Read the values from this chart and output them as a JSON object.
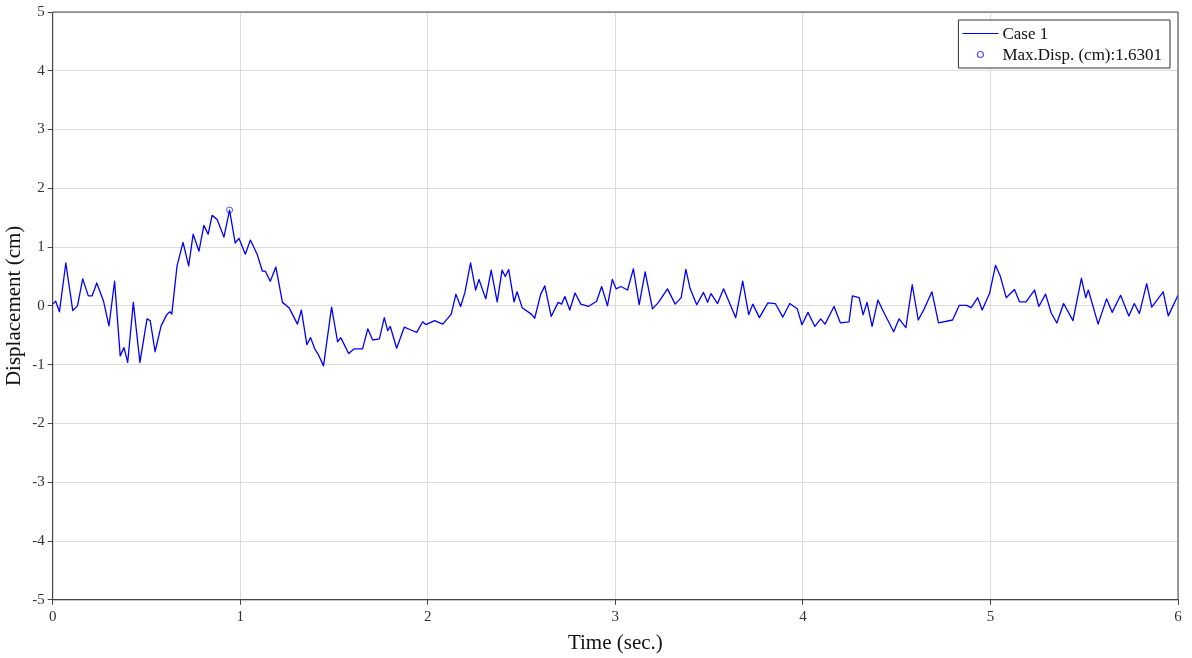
{
  "chart_data": {
    "type": "line",
    "xlabel": "Time (sec.)",
    "ylabel": "Displacement (cm)",
    "xlim": [
      0,
      6
    ],
    "ylim": [
      -5,
      5
    ],
    "xticks": [
      0,
      1,
      2,
      3,
      4,
      5,
      6
    ],
    "yticks": [
      -5,
      -4,
      -3,
      -2,
      -1,
      0,
      1,
      2,
      3,
      4,
      5
    ],
    "grid": true,
    "legend": "top right",
    "series": [
      {
        "name": "Case 1",
        "color": "#0000ff",
        "marker": "none",
        "line_style": "solid",
        "x": [
          0,
          0.016,
          0.036,
          0.07,
          0.107,
          0.132,
          0.16,
          0.19,
          0.21,
          0.235,
          0.271,
          0.3,
          0.33,
          0.36,
          0.38,
          0.4,
          0.43,
          0.465,
          0.503,
          0.52,
          0.546,
          0.578,
          0.61,
          0.625,
          0.635,
          0.663,
          0.695,
          0.725,
          0.749,
          0.78,
          0.806,
          0.829,
          0.85,
          0.877,
          0.913,
          0.943,
          0.973,
          0.993,
          1.027,
          1.054,
          1.09,
          1.118,
          1.134,
          1.16,
          1.19,
          1.225,
          1.26,
          1.305,
          1.326,
          1.355,
          1.375,
          1.397,
          1.415,
          1.444,
          1.487,
          1.519,
          1.536,
          1.578,
          1.608,
          1.652,
          1.68,
          1.706,
          1.742,
          1.768,
          1.786,
          1.8,
          1.834,
          1.875,
          1.91,
          1.941,
          1.973,
          1.99,
          2.036,
          2.08,
          2.125,
          2.15,
          2.175,
          2.198,
          2.228,
          2.255,
          2.273,
          2.309,
          2.338,
          2.37,
          2.396,
          2.413,
          2.431,
          2.46,
          2.476,
          2.503,
          2.552,
          2.57,
          2.602,
          2.624,
          2.658,
          2.695,
          2.713,
          2.731,
          2.757,
          2.785,
          2.816,
          2.856,
          2.9,
          2.927,
          2.958,
          2.984,
          3.004,
          3.03,
          3.065,
          3.096,
          3.127,
          3.159,
          3.198,
          3.23,
          3.278,
          3.319,
          3.351,
          3.376,
          3.399,
          3.434,
          3.47,
          3.492,
          3.51,
          3.545,
          3.577,
          3.642,
          3.679,
          3.711,
          3.733,
          3.768,
          3.813,
          3.853,
          3.893,
          3.93,
          3.97,
          3.995,
          4.027,
          4.064,
          4.095,
          4.118,
          4.166,
          4.2,
          4.246,
          4.264,
          4.3,
          4.321,
          4.342,
          4.369,
          4.4,
          4.425,
          4.484,
          4.513,
          4.549,
          4.583,
          4.615,
          4.647,
          4.688,
          4.723,
          4.798,
          4.834,
          4.873,
          4.897,
          4.932,
          4.956,
          4.995,
          5.027,
          5.052,
          5.084,
          5.128,
          5.155,
          5.19,
          5.235,
          5.258,
          5.294,
          5.324,
          5.354,
          5.39,
          5.44,
          5.485,
          5.508,
          5.522,
          5.574,
          5.619,
          5.649,
          5.694,
          5.738,
          5.767,
          5.794,
          5.833,
          5.86,
          5.921,
          5.948,
          6
        ],
        "values": [
          0.03,
          0.08,
          -0.1,
          0.73,
          -0.08,
          0,
          0.46,
          0.17,
          0.17,
          0.39,
          0.08,
          -0.34,
          0.42,
          -0.85,
          -0.71,
          -0.96,
          0.06,
          -0.96,
          -0.22,
          -0.25,
          -0.78,
          -0.34,
          -0.14,
          -0.1,
          -0.14,
          0.68,
          1.08,
          0.68,
          1.22,
          0.93,
          1.37,
          1.22,
          1.54,
          1.47,
          1.17,
          1.6301,
          1.07,
          1.15,
          0.88,
          1.12,
          0.88,
          0.59,
          0.59,
          0.42,
          0.66,
          0.06,
          -0.03,
          -0.31,
          -0.07,
          -0.66,
          -0.54,
          -0.73,
          -0.82,
          -1.02,
          -0.02,
          -0.61,
          -0.54,
          -0.81,
          -0.73,
          -0.73,
          -0.39,
          -0.58,
          -0.56,
          -0.2,
          -0.42,
          -0.35,
          -0.72,
          -0.36,
          -0.41,
          -0.45,
          -0.27,
          -0.32,
          -0.25,
          -0.31,
          -0.14,
          0.2,
          -0.01,
          0.23,
          0.73,
          0.27,
          0.45,
          0.12,
          0.61,
          0.07,
          0.61,
          0.5,
          0.62,
          0.07,
          0.24,
          -0.03,
          -0.14,
          -0.21,
          0.2,
          0.34,
          -0.18,
          0.06,
          0.03,
          0.16,
          -0.07,
          0.22,
          0.03,
          -0.01,
          0.08,
          0.33,
          0,
          0.45,
          0.29,
          0.33,
          0.27,
          0.63,
          0.02,
          0.58,
          -0.05,
          0.06,
          0.29,
          0.03,
          0.14,
          0.62,
          0.29,
          0.02,
          0.23,
          0.06,
          0.21,
          0.04,
          0.29,
          -0.2,
          0.42,
          -0.15,
          0.03,
          -0.2,
          0.05,
          0.04,
          -0.19,
          0.04,
          -0.05,
          -0.32,
          -0.11,
          -0.35,
          -0.22,
          -0.31,
          -0.01,
          -0.29,
          -0.27,
          0.17,
          0.14,
          -0.15,
          0.06,
          -0.35,
          0.1,
          -0.07,
          -0.44,
          -0.22,
          -0.37,
          0.36,
          -0.24,
          -0.05,
          0.24,
          -0.29,
          -0.24,
          0.01,
          0.01,
          -0.03,
          0.14,
          -0.07,
          0.21,
          0.69,
          0.51,
          0.14,
          0.28,
          0.07,
          0.07,
          0.27,
          -0.01,
          0.2,
          -0.12,
          -0.29,
          0.04,
          -0.25,
          0.47,
          0.14,
          0.27,
          -0.31,
          0.12,
          -0.11,
          0.18,
          -0.17,
          0.04,
          -0.13,
          0.38,
          -0.02,
          0.24,
          -0.17,
          0.18
        ]
      },
      {
        "name": "Max.Disp. (cm):1.6301",
        "type": "scatter",
        "color": "#5050ff",
        "marker": "circle",
        "x": [
          0.943
        ],
        "values": [
          1.6301
        ]
      }
    ]
  }
}
